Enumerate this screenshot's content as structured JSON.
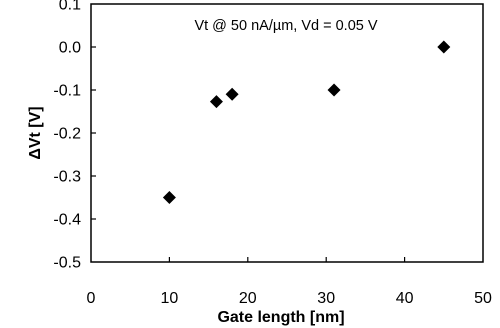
{
  "chart_data": {
    "type": "scatter",
    "title": "",
    "annotation": "Vt @ 50 nA/µm, Vd = 0.05 V",
    "xlabel": "Gate length [nm]",
    "ylabel": "ΔVt [V]",
    "xlim": [
      0,
      50
    ],
    "ylim": [
      -0.5,
      0.1
    ],
    "x_ticks": [
      0,
      10,
      20,
      30,
      40,
      50
    ],
    "x_tick_labels": [
      "0",
      "10",
      "20",
      "30",
      "40",
      "50"
    ],
    "y_ticks": [
      0.1,
      0.0,
      -0.1,
      -0.2,
      -0.3,
      -0.4,
      -0.5
    ],
    "y_tick_labels": [
      "0.1",
      "0.0",
      "-0.1",
      "-0.2",
      "-0.3",
      "-0.4",
      "-0.5"
    ],
    "grid": false,
    "marker": "diamond",
    "marker_color": "#000000",
    "series": [
      {
        "points": [
          {
            "x": 10,
            "y": -0.35
          },
          {
            "x": 16,
            "y": -0.127
          },
          {
            "x": 18,
            "y": -0.11
          },
          {
            "x": 31,
            "y": -0.1
          },
          {
            "x": 45,
            "y": 0.0
          }
        ]
      }
    ]
  }
}
